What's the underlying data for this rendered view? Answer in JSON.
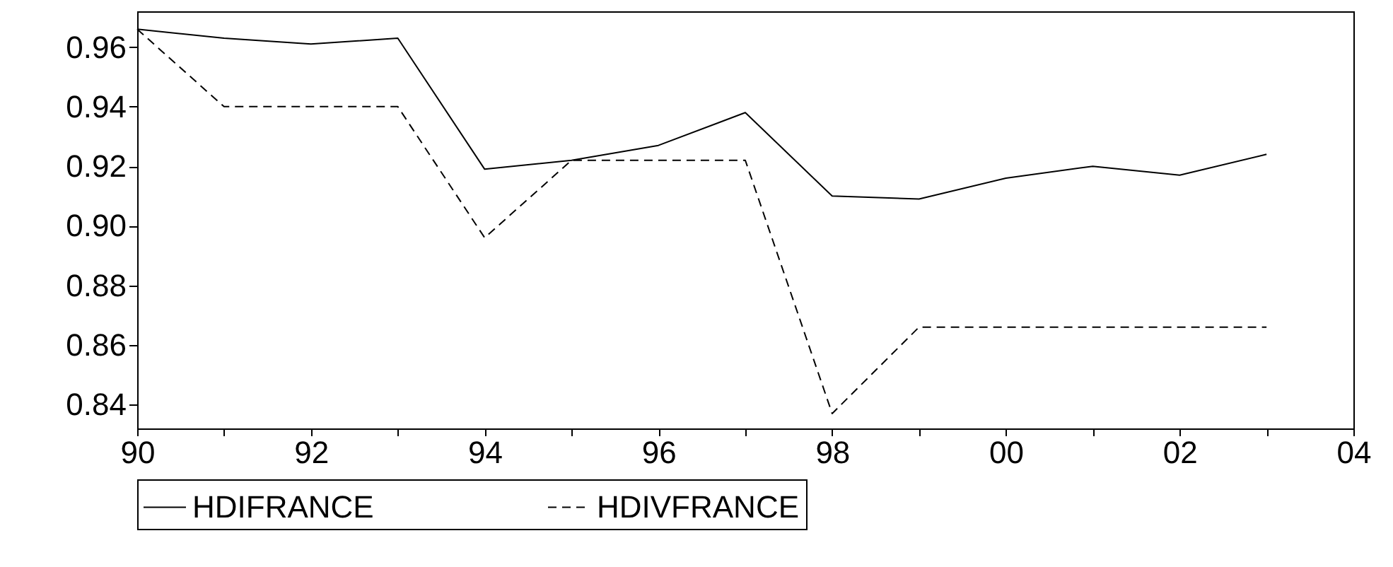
{
  "chart_data": {
    "type": "line",
    "x": [
      1990,
      1991,
      1992,
      1993,
      1994,
      1995,
      1996,
      1997,
      1998,
      1999,
      2000,
      2001,
      2002,
      2003
    ],
    "series": [
      {
        "name": "HDIFRANCE",
        "color": "#000000",
        "line_style": "solid",
        "values": [
          0.966,
          0.963,
          0.961,
          0.963,
          0.919,
          0.922,
          0.927,
          0.938,
          0.91,
          0.909,
          0.916,
          0.92,
          0.917,
          0.924
        ]
      },
      {
        "name": "HDIVFRANCE",
        "color": "#000000",
        "line_style": "dashed",
        "values": [
          0.966,
          0.94,
          0.94,
          0.94,
          0.896,
          0.922,
          0.922,
          0.922,
          0.837,
          0.866,
          0.866,
          0.866,
          0.866,
          0.866
        ]
      }
    ],
    "xlim": [
      1990,
      2004
    ],
    "xticks": [
      {
        "value": 1990,
        "label": "90"
      },
      {
        "value": 1991,
        "label": null
      },
      {
        "value": 1992,
        "label": "92"
      },
      {
        "value": 1993,
        "label": null
      },
      {
        "value": 1994,
        "label": "94"
      },
      {
        "value": 1995,
        "label": null
      },
      {
        "value": 1996,
        "label": "96"
      },
      {
        "value": 1997,
        "label": null
      },
      {
        "value": 1998,
        "label": "98"
      },
      {
        "value": 1999,
        "label": null
      },
      {
        "value": 2000,
        "label": "00"
      },
      {
        "value": 2001,
        "label": null
      },
      {
        "value": 2002,
        "label": "02"
      },
      {
        "value": 2003,
        "label": null
      },
      {
        "value": 2004,
        "label": "04"
      }
    ],
    "ylim": [
      0.832,
      0.972
    ],
    "yticks": [
      {
        "value": 0.84,
        "label": "0.84"
      },
      {
        "value": 0.86,
        "label": "0.86"
      },
      {
        "value": 0.88,
        "label": "0.88"
      },
      {
        "value": 0.9,
        "label": "0.90"
      },
      {
        "value": 0.92,
        "label": "0.92"
      },
      {
        "value": 0.94,
        "label": "0.94"
      },
      {
        "value": 0.96,
        "label": "0.96"
      }
    ],
    "grid": false,
    "legend": "bottom",
    "marker": "none"
  }
}
